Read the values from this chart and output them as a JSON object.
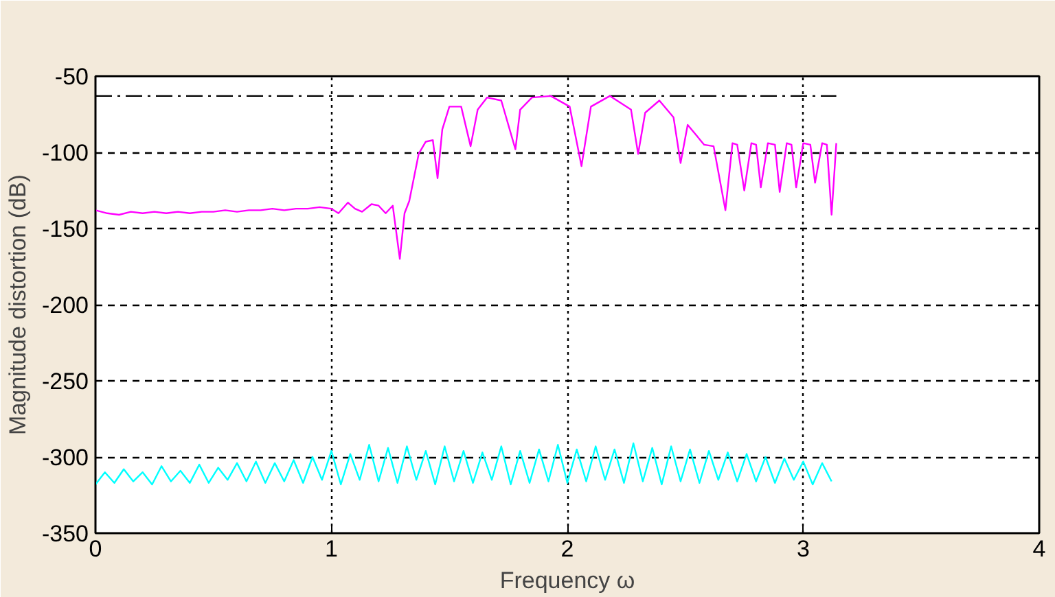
{
  "chart_data": {
    "type": "line",
    "xlabel": "Frequency ω",
    "ylabel": "Magnitude distortion (dB)",
    "xlim": [
      0,
      4
    ],
    "ylim": [
      -350,
      -50
    ],
    "xticks": [
      0,
      1,
      2,
      3,
      4
    ],
    "yticks": [
      -350,
      -300,
      -250,
      -200,
      -150,
      -100,
      -50
    ],
    "grid": true,
    "series": [
      {
        "color": "#000000",
        "line_style": "dashed",
        "x": [
          0,
          3.14
        ],
        "values": [
          -63,
          -63
        ]
      },
      {
        "color": "#ff00ff",
        "x": [
          0,
          0.05,
          0.1,
          0.15,
          0.2,
          0.25,
          0.3,
          0.35,
          0.4,
          0.45,
          0.5,
          0.55,
          0.6,
          0.65,
          0.7,
          0.75,
          0.8,
          0.85,
          0.9,
          0.95,
          1.0,
          1.03,
          1.07,
          1.1,
          1.13,
          1.17,
          1.2,
          1.23,
          1.26,
          1.29,
          1.31,
          1.33,
          1.37,
          1.4,
          1.43,
          1.45,
          1.47,
          1.5,
          1.55,
          1.59,
          1.62,
          1.66,
          1.72,
          1.78,
          1.8,
          1.85,
          1.93,
          2.01,
          2.06,
          2.1,
          2.18,
          2.27,
          2.3,
          2.33,
          2.39,
          2.45,
          2.48,
          2.51,
          2.58,
          2.62,
          2.67,
          2.7,
          2.72,
          2.75,
          2.78,
          2.8,
          2.82,
          2.85,
          2.88,
          2.9,
          2.93,
          2.95,
          2.97,
          3.0,
          3.03,
          3.05,
          3.08,
          3.1,
          3.12,
          3.14
        ],
        "values": [
          -138,
          -140,
          -141,
          -139,
          -140,
          -139,
          -140,
          -139,
          -140,
          -139,
          -139,
          -138,
          -139,
          -138,
          -138,
          -137,
          -138,
          -137,
          -137,
          -136,
          -137,
          -140,
          -133,
          -137,
          -139,
          -134,
          -135,
          -140,
          -135,
          -170,
          -140,
          -132,
          -101,
          -93,
          -92,
          -117,
          -85,
          -70,
          -70,
          -96,
          -72,
          -64,
          -66,
          -98,
          -72,
          -64,
          -63,
          -70,
          -109,
          -70,
          -63,
          -72,
          -101,
          -74,
          -66,
          -77,
          -107,
          -82,
          -95,
          -96,
          -138,
          -94,
          -95,
          -125,
          -94,
          -95,
          -123,
          -94,
          -95,
          -126,
          -94,
          -95,
          -123,
          -94,
          -95,
          -120,
          -94,
          -95,
          -141,
          -94
        ]
      },
      {
        "color": "#00ffff",
        "x": [
          0,
          0.04,
          0.08,
          0.12,
          0.16,
          0.2,
          0.24,
          0.28,
          0.32,
          0.36,
          0.4,
          0.44,
          0.48,
          0.52,
          0.56,
          0.6,
          0.64,
          0.68,
          0.72,
          0.76,
          0.8,
          0.84,
          0.88,
          0.92,
          0.96,
          1.0,
          1.04,
          1.08,
          1.12,
          1.16,
          1.2,
          1.24,
          1.28,
          1.32,
          1.36,
          1.4,
          1.44,
          1.48,
          1.52,
          1.56,
          1.6,
          1.64,
          1.68,
          1.72,
          1.76,
          1.8,
          1.84,
          1.88,
          1.92,
          1.96,
          2.0,
          2.04,
          2.08,
          2.12,
          2.16,
          2.2,
          2.24,
          2.28,
          2.32,
          2.36,
          2.4,
          2.44,
          2.48,
          2.52,
          2.56,
          2.6,
          2.64,
          2.68,
          2.72,
          2.76,
          2.8,
          2.84,
          2.88,
          2.92,
          2.96,
          3.0,
          3.04,
          3.08,
          3.12
        ],
        "values": [
          -318,
          -310,
          -317,
          -308,
          -316,
          -310,
          -318,
          -306,
          -316,
          -309,
          -317,
          -305,
          -317,
          -307,
          -315,
          -304,
          -316,
          -303,
          -317,
          -304,
          -316,
          -302,
          -317,
          -300,
          -315,
          -296,
          -318,
          -298,
          -315,
          -292,
          -316,
          -294,
          -317,
          -293,
          -315,
          -296,
          -318,
          -293,
          -316,
          -296,
          -317,
          -297,
          -315,
          -293,
          -318,
          -296,
          -317,
          -295,
          -316,
          -292,
          -317,
          -295,
          -316,
          -293,
          -315,
          -295,
          -317,
          -291,
          -316,
          -294,
          -318,
          -293,
          -316,
          -295,
          -317,
          -296,
          -315,
          -297,
          -316,
          -298,
          -316,
          -300,
          -317,
          -301,
          -315,
          -303,
          -318,
          -304,
          -316
        ]
      }
    ]
  }
}
